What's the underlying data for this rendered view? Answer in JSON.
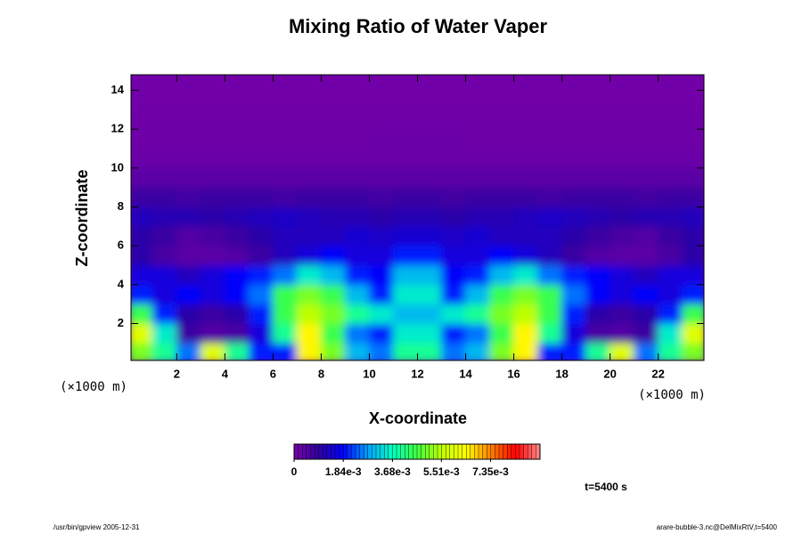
{
  "chart_data": {
    "type": "heatmap",
    "title": "Mixing Ratio of Water Vaper",
    "xlabel": "X-coordinate",
    "ylabel": "Z-coordinate",
    "xunit_label": "(×1000 m)",
    "yunit_label": "(×1000 m)",
    "time_label": "t=5400 s",
    "footer_left": "/usr/bin/gpview 2005-12-31",
    "footer_right": "arare-bubble-3.nc@DelMixRtV,t=5400",
    "xlim": [
      0.1,
      23.9
    ],
    "ylim": [
      0.1,
      14.8
    ],
    "xticks": [
      2,
      4,
      6,
      8,
      10,
      12,
      14,
      16,
      18,
      20,
      22
    ],
    "yticks": [
      2,
      4,
      6,
      8,
      10,
      12,
      14
    ],
    "clim": [
      0,
      0.0092
    ],
    "cticks": [
      0,
      {
        "value": 0.00184,
        "label": "1.84e-3"
      },
      {
        "value": 0.00368,
        "label": "3.68e-3"
      },
      {
        "value": 0.00551,
        "label": "5.51e-3"
      },
      {
        "value": 0.00735,
        "label": "7.35e-3"
      }
    ],
    "colormap": [
      "#7a00aa",
      "#3000a0",
      "#0000ff",
      "#00a0ff",
      "#00ffc0",
      "#40ff40",
      "#c0ff00",
      "#ffff00",
      "#ff8000",
      "#ff0000",
      "#ff8c8c"
    ],
    "x": [
      0.5,
      1.5,
      2.5,
      3.5,
      4.5,
      5.5,
      6.5,
      7.5,
      8.5,
      9.5,
      10.5,
      11.5,
      12.5,
      13.5,
      14.5,
      15.5,
      16.5,
      17.5,
      18.5,
      19.5,
      20.5,
      21.5,
      22.5,
      23.5
    ],
    "y": [
      0.5,
      1.5,
      2.5,
      3.5,
      4.5,
      5.5,
      6.5,
      7.5,
      8.5,
      9.5,
      10.5,
      11.5,
      12.5,
      13.5,
      14.5
    ],
    "z": [
      [
        0.005,
        0.004,
        0.0025,
        0.006,
        0.004,
        0.002,
        0.002,
        0.0065,
        0.005,
        0.003,
        0.0025,
        0.004,
        0.004,
        0.0025,
        0.003,
        0.005,
        0.0065,
        0.002,
        0.002,
        0.004,
        0.006,
        0.0025,
        0.004,
        0.005
      ],
      [
        0.006,
        0.0035,
        0.0008,
        0.0005,
        0.0006,
        0.0015,
        0.004,
        0.0065,
        0.0045,
        0.0025,
        0.002,
        0.0035,
        0.0035,
        0.002,
        0.0025,
        0.0045,
        0.0065,
        0.004,
        0.0015,
        0.0006,
        0.0005,
        0.0008,
        0.0035,
        0.006
      ],
      [
        0.0045,
        0.002,
        0.001,
        0.0008,
        0.001,
        0.002,
        0.0045,
        0.0055,
        0.005,
        0.004,
        0.0035,
        0.003,
        0.003,
        0.0035,
        0.004,
        0.005,
        0.0055,
        0.0045,
        0.002,
        0.001,
        0.0008,
        0.001,
        0.002,
        0.0045
      ],
      [
        0.002,
        0.0015,
        0.0018,
        0.0015,
        0.0018,
        0.0025,
        0.0045,
        0.005,
        0.0045,
        0.003,
        0.002,
        0.0035,
        0.0035,
        0.002,
        0.003,
        0.0045,
        0.005,
        0.0045,
        0.0025,
        0.0018,
        0.0015,
        0.0018,
        0.0015,
        0.002
      ],
      [
        0.0015,
        0.0015,
        0.0012,
        0.0015,
        0.0018,
        0.002,
        0.0025,
        0.0035,
        0.003,
        0.002,
        0.0018,
        0.003,
        0.003,
        0.0018,
        0.002,
        0.003,
        0.0035,
        0.0025,
        0.002,
        0.0018,
        0.0015,
        0.0012,
        0.0015,
        0.0015
      ],
      [
        0.001,
        0.0006,
        0.0004,
        0.0004,
        0.0005,
        0.0008,
        0.0012,
        0.0015,
        0.0018,
        0.0015,
        0.0015,
        0.002,
        0.002,
        0.0015,
        0.0015,
        0.0018,
        0.0015,
        0.0012,
        0.0008,
        0.0005,
        0.0004,
        0.0004,
        0.0006,
        0.001
      ],
      [
        0.001,
        0.0008,
        0.0005,
        0.0006,
        0.0008,
        0.001,
        0.0012,
        0.0012,
        0.0012,
        0.0014,
        0.0013,
        0.0014,
        0.0014,
        0.0013,
        0.0014,
        0.0012,
        0.0012,
        0.0012,
        0.001,
        0.0008,
        0.0006,
        0.0005,
        0.0008,
        0.001
      ],
      [
        0.0012,
        0.0011,
        0.0011,
        0.001,
        0.0011,
        0.0012,
        0.0013,
        0.0012,
        0.0011,
        0.0011,
        0.001,
        0.0011,
        0.0011,
        0.001,
        0.0011,
        0.0011,
        0.0012,
        0.0013,
        0.0012,
        0.0011,
        0.001,
        0.0011,
        0.0011,
        0.0012
      ],
      [
        0.0008,
        0.0008,
        0.0007,
        0.0008,
        0.0008,
        0.0008,
        0.0007,
        0.0008,
        0.0008,
        0.0008,
        0.0007,
        0.0008,
        0.0008,
        0.0007,
        0.0008,
        0.0008,
        0.0008,
        0.0007,
        0.0008,
        0.0008,
        0.0008,
        0.0007,
        0.0008,
        0.0008
      ],
      [
        0.0004,
        0.0004,
        0.0004,
        0.0004,
        0.0004,
        0.0004,
        0.0004,
        0.0004,
        0.0004,
        0.0004,
        0.0004,
        0.0004,
        0.0004,
        0.0004,
        0.0004,
        0.0004,
        0.0004,
        0.0004,
        0.0004,
        0.0004,
        0.0004,
        0.0004,
        0.0004,
        0.0004
      ],
      [
        0.0002,
        0.0002,
        0.0002,
        0.0002,
        0.0002,
        0.0002,
        0.0002,
        0.0002,
        0.0002,
        0.0002,
        0.0002,
        0.0002,
        0.0002,
        0.0002,
        0.0002,
        0.0002,
        0.0002,
        0.0002,
        0.0002,
        0.0002,
        0.0002,
        0.0002,
        0.0002,
        0.0002
      ],
      [
        0.00015,
        0.00015,
        0.00015,
        0.00015,
        0.00015,
        0.00015,
        0.00015,
        0.00015,
        0.00015,
        0.00015,
        0.0002,
        0.0002,
        0.0002,
        0.0002,
        0.00015,
        0.00015,
        0.00015,
        0.00015,
        0.00015,
        0.00015,
        0.00015,
        0.00015,
        0.00015,
        0.00015
      ],
      [
        0.00015,
        0.00015,
        0.00015,
        0.00015,
        0.00015,
        0.00015,
        0.00015,
        0.00015,
        0.00015,
        0.00015,
        0.00015,
        0.00015,
        0.00015,
        0.00015,
        0.00015,
        0.00015,
        0.00015,
        0.00015,
        0.00015,
        0.00015,
        0.00015,
        0.00015,
        0.00015,
        0.00015
      ],
      [
        0.0001,
        0.0001,
        0.0001,
        0.0001,
        0.0001,
        0.0001,
        0.0001,
        0.0001,
        0.0001,
        0.0001,
        0.0001,
        0.0001,
        0.0001,
        0.0001,
        0.0001,
        0.0001,
        0.0001,
        0.0001,
        0.0001,
        0.0001,
        0.0001,
        0.0001,
        0.0001,
        0.0001
      ],
      [
        0.0001,
        0.0001,
        0.0001,
        0.0001,
        0.0001,
        0.0001,
        0.0001,
        0.0001,
        0.0001,
        0.0001,
        0.0001,
        0.0001,
        0.0001,
        0.0001,
        0.0001,
        0.0001,
        0.0001,
        0.0001,
        0.0001,
        0.0001,
        0.0001,
        0.0001,
        0.0001,
        0.0001
      ]
    ]
  }
}
